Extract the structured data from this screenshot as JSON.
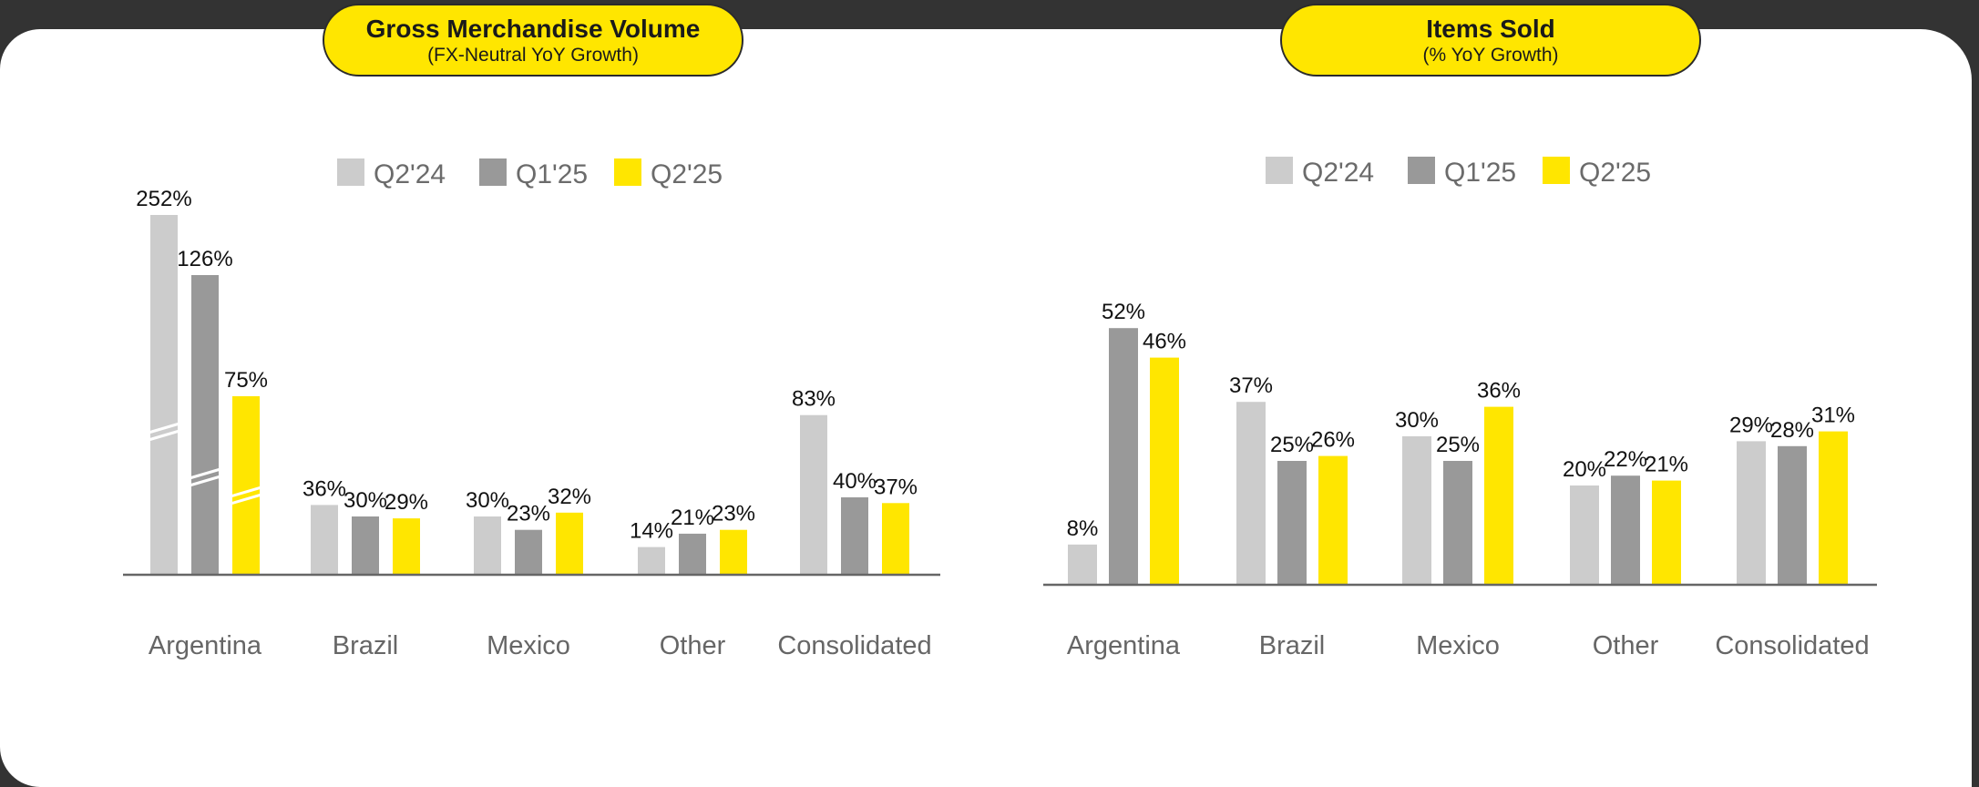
{
  "colors": {
    "Q2'24": "#cccccc",
    "Q1'25": "#999999",
    "Q2'25": "#ffe600",
    "axis": "#666666"
  },
  "charts": {
    "gmv": {
      "title": "Gross Merchandise Volume",
      "subtitle": "(FX-Neutral YoY Growth)"
    },
    "items": {
      "title": "Items Sold",
      "subtitle": "(% YoY Growth)"
    }
  },
  "chart_data": [
    {
      "type": "bar",
      "title": "Gross Merchandise Volume",
      "subtitle": "(FX-Neutral YoY Growth)",
      "categories": [
        "Argentina",
        "Brazil",
        "Mexico",
        "Other",
        "Consolidated"
      ],
      "series": [
        {
          "name": "Q2'24",
          "values": [
            252,
            36,
            30,
            14,
            83
          ]
        },
        {
          "name": "Q1'25",
          "values": [
            126,
            30,
            23,
            21,
            40
          ]
        },
        {
          "name": "Q2'25",
          "values": [
            75,
            29,
            32,
            23,
            37
          ]
        }
      ],
      "value_labels": [
        [
          "252%",
          "36%",
          "30%",
          "14%",
          "83%"
        ],
        [
          "126%",
          "30%",
          "23%",
          "21%",
          "40%"
        ],
        [
          "75%",
          "29%",
          "32%",
          "23%",
          "37%"
        ]
      ],
      "axis_break": "Argentina bars (broken scale)",
      "legend": "top-center",
      "grid": false
    },
    {
      "type": "bar",
      "title": "Items Sold",
      "subtitle": "(% YoY Growth)",
      "categories": [
        "Argentina",
        "Brazil",
        "Mexico",
        "Other",
        "Consolidated"
      ],
      "series": [
        {
          "name": "Q2'24",
          "values": [
            8,
            37,
            30,
            20,
            29
          ]
        },
        {
          "name": "Q1'25",
          "values": [
            52,
            25,
            25,
            22,
            28
          ]
        },
        {
          "name": "Q2'25",
          "values": [
            46,
            26,
            36,
            21,
            31
          ]
        }
      ],
      "value_labels": [
        [
          "8%",
          "37%",
          "30%",
          "20%",
          "29%"
        ],
        [
          "52%",
          "25%",
          "25%",
          "22%",
          "28%"
        ],
        [
          "46%",
          "26%",
          "36%",
          "21%",
          "31%"
        ]
      ],
      "legend": "top-center",
      "grid": false
    }
  ]
}
